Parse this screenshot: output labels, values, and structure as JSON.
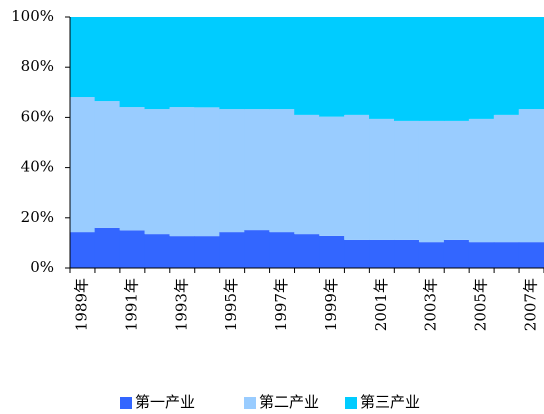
{
  "chart_data": {
    "type": "stacked_area_percent",
    "categories": [
      "1989年",
      null,
      "1991年",
      null,
      "1993年",
      null,
      "1995年",
      null,
      "1997年",
      null,
      "1999年",
      null,
      "2001年",
      null,
      "2003年",
      null,
      "2005年",
      null,
      "2007年"
    ],
    "series": [
      {
        "name": "第一产业",
        "color": "#3366ff",
        "values": [
          14.3,
          16.0,
          15.0,
          13.5,
          12.7,
          12.7,
          14.3,
          15.1,
          14.3,
          13.5,
          12.8,
          11.2,
          11.2,
          11.2,
          10.3,
          11.2,
          10.3,
          10.3,
          10.3
        ]
      },
      {
        "name": "第二产业",
        "color": "#99ccff",
        "values": [
          53.8,
          50.5,
          49.1,
          49.8,
          51.4,
          51.3,
          49.0,
          48.2,
          49.0,
          47.5,
          47.5,
          49.8,
          48.2,
          47.4,
          48.3,
          47.4,
          49.1,
          50.7,
          53.0
        ]
      },
      {
        "name": "第三产业",
        "color": "#00ccff",
        "values": [
          31.9,
          33.5,
          35.9,
          36.7,
          35.9,
          36.0,
          36.7,
          36.7,
          36.7,
          39.0,
          39.7,
          39.0,
          40.6,
          41.4,
          41.4,
          41.4,
          40.6,
          39.0,
          36.7
        ]
      }
    ],
    "ylim": [
      0,
      100
    ],
    "yticks": [
      {
        "value": 0,
        "label": "0%"
      },
      {
        "value": 20,
        "label": "20%"
      },
      {
        "value": 40,
        "label": "40%"
      },
      {
        "value": 60,
        "label": "60%"
      },
      {
        "value": 80,
        "label": "80%"
      },
      {
        "value": 100,
        "label": "100%"
      }
    ],
    "legend": "bottom"
  }
}
